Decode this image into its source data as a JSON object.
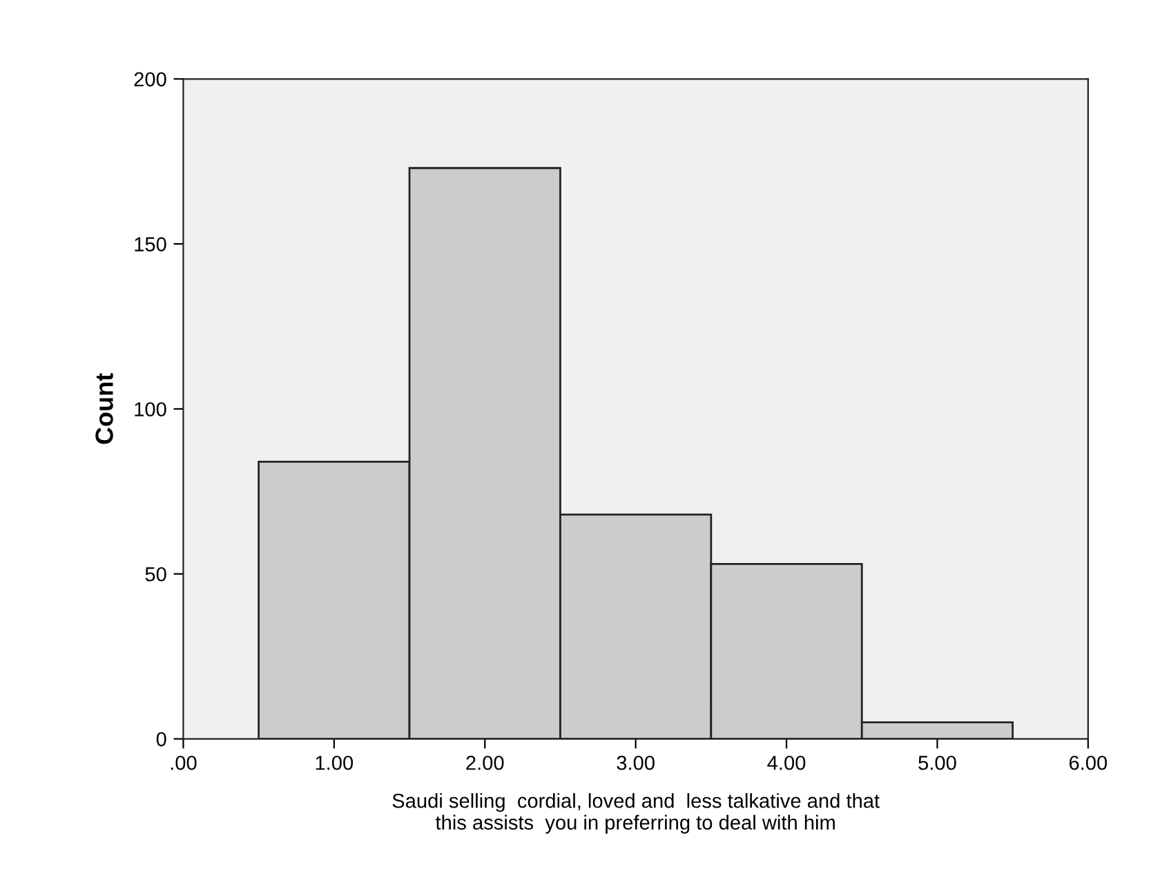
{
  "chart_data": {
    "type": "histogram",
    "xlabel": "Saudi selling  cordial, loved and  less talkative and that\nthis assists  you in preferring to deal with him",
    "ylabel": "Count",
    "bins": [
      0.5,
      1.5,
      2.5,
      3.5,
      4.5,
      5.5
    ],
    "values": [
      84,
      173,
      68,
      53,
      5
    ],
    "color": "#cccccc",
    "xlim": [
      0,
      6
    ],
    "xticks": [
      {
        "value": 0,
        "label": ".00"
      },
      {
        "value": 1,
        "label": "1.00"
      },
      {
        "value": 2,
        "label": "2.00"
      },
      {
        "value": 3,
        "label": "3.00"
      },
      {
        "value": 4,
        "label": "4.00"
      },
      {
        "value": 5,
        "label": "5.00"
      },
      {
        "value": 6,
        "label": "6.00"
      }
    ],
    "ylim": [
      0,
      200
    ],
    "yticks": [
      0,
      50,
      100,
      150,
      200
    ],
    "grid": false
  }
}
